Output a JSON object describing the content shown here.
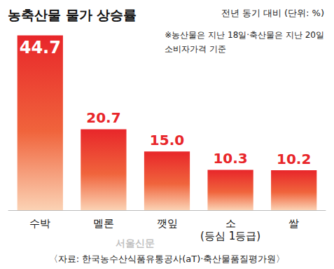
{
  "chart_data": {
    "type": "bar",
    "title": "농축산물 물가 상승률",
    "subtitle": "전년 동기 대비 (단위: %)",
    "annotations": [
      "※농산물은 지난 18일·축산물은 지난 20일\n소비자가격 기준"
    ],
    "source": "〈자료: 한국농수산식품유통공사(aT)·축산물품질평가원〉",
    "watermark": "서울신문",
    "categories": [
      "수박",
      "멜론",
      "깻잎",
      "소\n(등심 1등급)",
      "쌀"
    ],
    "values": [
      44.7,
      20.7,
      15.0,
      10.3,
      10.2
    ],
    "value_labels": [
      "44.7",
      "20.7",
      "15.0",
      "10.3",
      "10.2"
    ],
    "color": "#e8262a",
    "ylim": [
      0,
      48
    ],
    "grid": false,
    "data_labels": true,
    "tick_labels": "x"
  }
}
